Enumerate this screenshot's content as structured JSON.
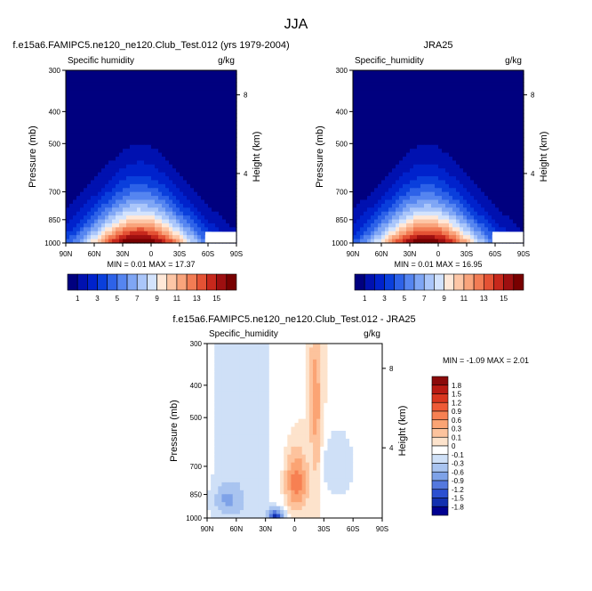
{
  "page_title": "JJA",
  "chart_data": [
    {
      "type": "contour",
      "panel": "model",
      "title": "f.e15a6.FAMIPC5.ne120_ne120.Club_Test.012 (yrs 1979-2004)",
      "left_label": "Specific humidity",
      "right_label": "g/kg",
      "ylabel": "Pressure (mb)",
      "ylabel_right": "Height (km)",
      "x_ticks": [
        "90N",
        "60N",
        "30N",
        "0",
        "30S",
        "60S",
        "90S"
      ],
      "x_range": [
        90,
        -90
      ],
      "y_ticks": [
        300,
        400,
        500,
        700,
        850,
        1000
      ],
      "y_range": [
        1000,
        300
      ],
      "log_pressure_axis": true,
      "height_ticks": [
        8,
        4
      ],
      "stats": "MIN =  0.01   MAX =  17.37",
      "min": 0.01,
      "max": 17.37,
      "peak_latitude": 12,
      "peak_pressure": 1000,
      "contour_levels": [
        1,
        2,
        3,
        4,
        5,
        6,
        7,
        8,
        9,
        10,
        11,
        12,
        13,
        14,
        15,
        16
      ],
      "colorbar_labels": [
        "1",
        "3",
        "5",
        "7",
        "9",
        "11",
        "13",
        "15"
      ],
      "colors": [
        "#00007f",
        "#0011b0",
        "#0022cc",
        "#0a3fdc",
        "#2d62e8",
        "#5585f0",
        "#7fa6f5",
        "#aac6fa",
        "#d3e3fd",
        "#ffe8d8",
        "#fdc6a6",
        "#f9a47c",
        "#f27c54",
        "#e45234",
        "#c7281c",
        "#9e0f10",
        "#780000"
      ]
    },
    {
      "type": "contour",
      "panel": "obs",
      "title": "JRA25",
      "left_label": "Specific_humidity",
      "right_label": "g/kg",
      "ylabel": "Pressure (mb)",
      "ylabel_right": "Height (km)",
      "x_ticks": [
        "90N",
        "60N",
        "30N",
        "0",
        "30S",
        "60S",
        "90S"
      ],
      "x_range": [
        90,
        -90
      ],
      "y_ticks": [
        300,
        400,
        500,
        700,
        850,
        1000
      ],
      "y_range": [
        1000,
        300
      ],
      "log_pressure_axis": true,
      "height_ticks": [
        8,
        4
      ],
      "stats": "MIN =  0.01   MAX =  16.95",
      "min": 0.01,
      "max": 16.95,
      "peak_latitude": 12,
      "peak_pressure": 1000,
      "contour_levels": [
        1,
        2,
        3,
        4,
        5,
        6,
        7,
        8,
        9,
        10,
        11,
        12,
        13,
        14,
        15,
        16
      ],
      "colorbar_labels": [
        "1",
        "3",
        "5",
        "7",
        "9",
        "11",
        "13",
        "15"
      ],
      "colors": [
        "#00007f",
        "#0011b0",
        "#0022cc",
        "#0a3fdc",
        "#2d62e8",
        "#5585f0",
        "#7fa6f5",
        "#aac6fa",
        "#d3e3fd",
        "#ffe8d8",
        "#fdc6a6",
        "#f9a47c",
        "#f27c54",
        "#e45234",
        "#c7281c",
        "#9e0f10",
        "#780000"
      ]
    },
    {
      "type": "contour",
      "panel": "difference",
      "title": "f.e15a6.FAMIPC5.ne120_ne120.Club_Test.012 - JRA25",
      "left_label": "Specific_humidity",
      "right_label": "g/kg",
      "ylabel": "Pressure (mb)",
      "ylabel_right": "Height (km)",
      "x_ticks": [
        "90N",
        "60N",
        "30N",
        "0",
        "30S",
        "60S",
        "90S"
      ],
      "x_range": [
        90,
        -90
      ],
      "y_ticks": [
        300,
        400,
        500,
        700,
        850,
        1000
      ],
      "y_range": [
        1000,
        300
      ],
      "log_pressure_axis": true,
      "height_ticks": [
        8,
        4
      ],
      "stats": "MIN = -1.09   MAX =  2.01",
      "min": -1.09,
      "max": 2.01,
      "contour_levels": [
        -1.8,
        -1.5,
        -1.2,
        -0.9,
        -0.6,
        -0.3,
        -0.1,
        0,
        0.1,
        0.3,
        0.6,
        0.9,
        1.2,
        1.5,
        1.8
      ],
      "colorbar_labels": [
        "1.8",
        "1.5",
        "1.2",
        "0.9",
        "0.6",
        "0.3",
        "0.1",
        "0",
        "-0.1",
        "-0.3",
        "-0.6",
        "-0.9",
        "-1.2",
        "-1.5",
        "-1.8"
      ],
      "colors": [
        "#8b0a0a",
        "#b81a12",
        "#d9361e",
        "#ee5a36",
        "#f78052",
        "#fba474",
        "#fdc39d",
        "#fde3cc",
        "#ffffff",
        "#cfe0f7",
        "#a9c4f0",
        "#7ea2e8",
        "#5478de",
        "#2b4fd0",
        "#1230b0",
        "#000090"
      ]
    }
  ]
}
